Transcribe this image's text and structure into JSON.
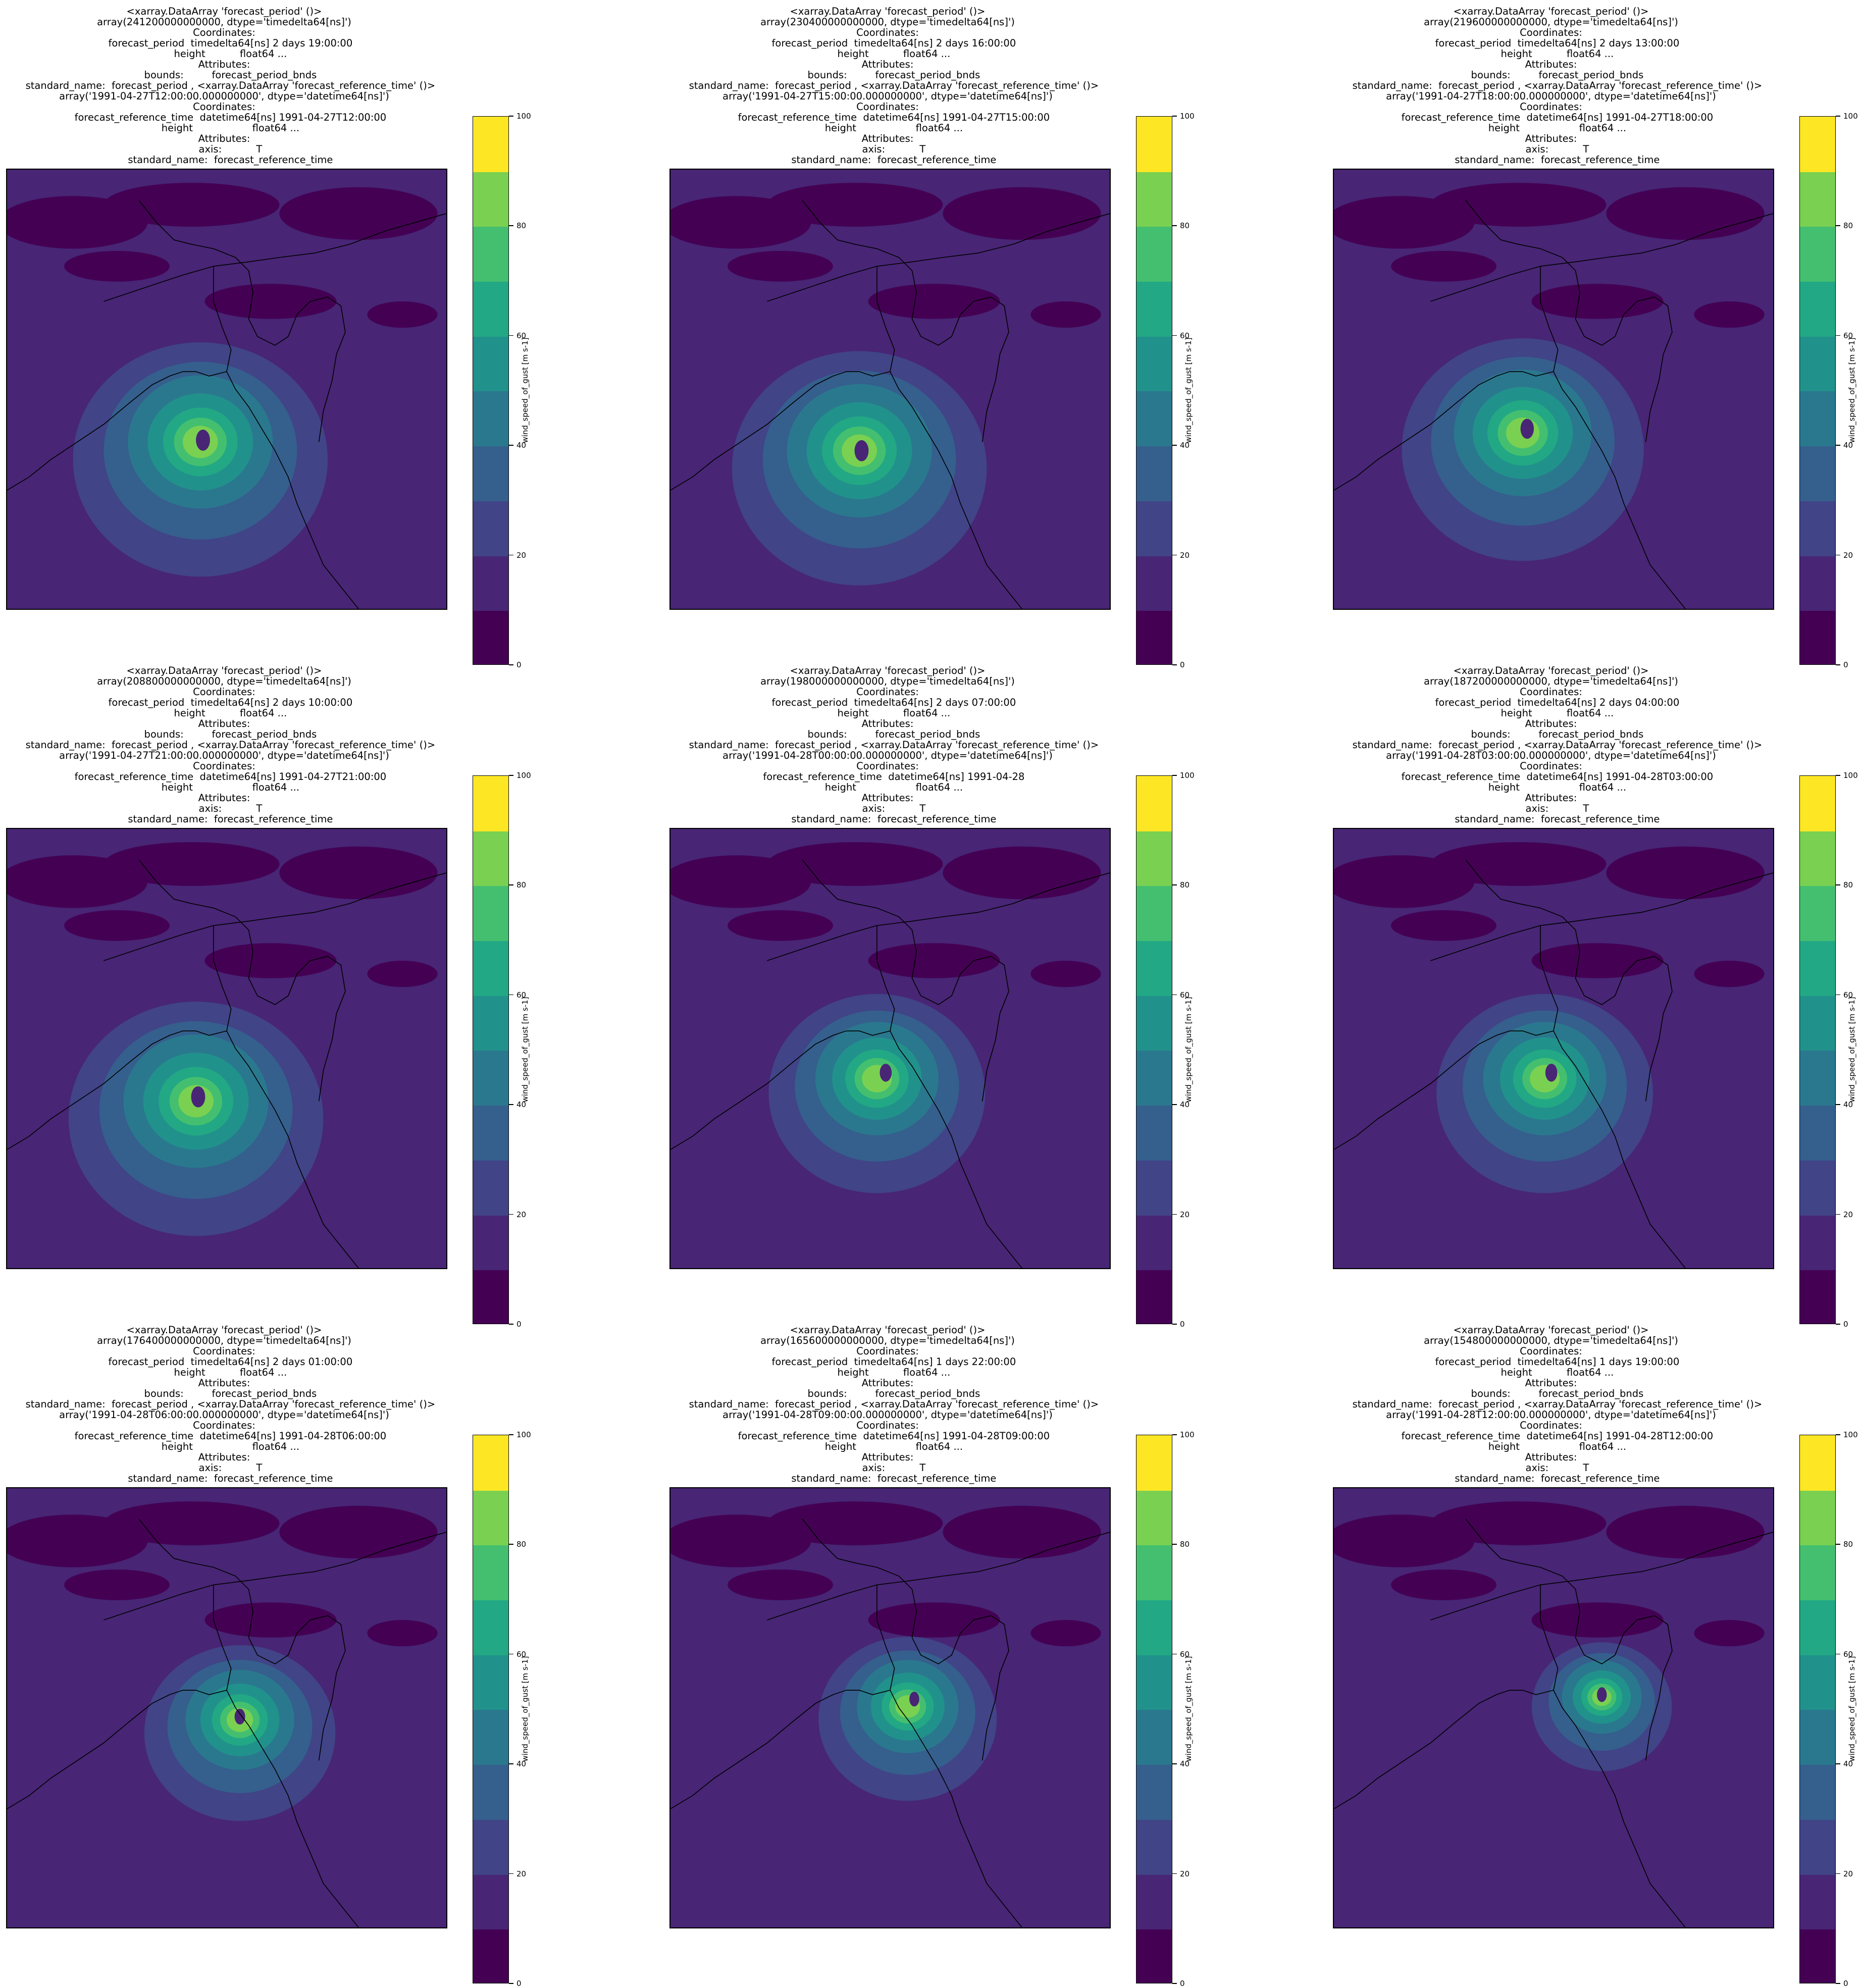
{
  "chart_data": {
    "type": "heatmap",
    "colormap_levels": [
      0,
      10,
      20,
      30,
      40,
      50,
      60,
      70,
      80,
      90,
      100
    ],
    "colormap_colors": [
      "#440154",
      "#482575",
      "#414487",
      "#355f8d",
      "#2a788e",
      "#21918c",
      "#22a884",
      "#44bf70",
      "#7ad151",
      "#bddf26",
      "#fde725"
    ],
    "colorbar_label": "wind_speed_of_gust [m s-1]",
    "colorbar_ticks": [
      "0",
      "20",
      "40",
      "60",
      "80",
      "100"
    ],
    "panels": [
      {
        "title_lines": [
          "<xarray.DataArray 'forecast_period' ()>",
          "array(241200000000000, dtype='timedelta64[ns]')",
          "Coordinates:",
          "    forecast_period  timedelta64[ns] 2 days 19:00:00",
          "    height           float64 ...",
          "Attributes:",
          "    bounds:         forecast_period_bnds",
          "    standard_name:  forecast_period , <xarray.DataArray 'forecast_reference_time' ()>",
          "array('1991-04-27T12:00:00.000000000', dtype='datetime64[ns]')",
          "Coordinates:",
          "    forecast_reference_time  datetime64[ns] 1991-04-27T12:00:00",
          "    height                   float64 ...",
          "Attributes:",
          "    axis:           T",
          "    standard_name:  forecast_reference_time"
        ],
        "storm_center": [
          0.44,
          0.61
        ],
        "storm_scale": 1.0,
        "eye_offset": [
          0.006,
          0.006
        ]
      },
      {
        "title_lines": [
          "<xarray.DataArray 'forecast_period' ()>",
          "array(230400000000000, dtype='timedelta64[ns]')",
          "Coordinates:",
          "    forecast_period  timedelta64[ns] 2 days 16:00:00",
          "    height           float64 ...",
          "Attributes:",
          "    bounds:         forecast_period_bnds",
          "    standard_name:  forecast_period , <xarray.DataArray 'forecast_reference_time' ()>",
          "array('1991-04-27T15:00:00.000000000', dtype='datetime64[ns]')",
          "Coordinates:",
          "    forecast_reference_time  datetime64[ns] 1991-04-27T15:00:00",
          "    height                   float64 ...",
          "Attributes:",
          "    axis:           T",
          "    standard_name:  forecast_reference_time"
        ],
        "storm_center": [
          0.43,
          0.63
        ],
        "storm_scale": 1.0,
        "eye_offset": [
          0.005,
          0.01
        ]
      },
      {
        "title_lines": [
          "<xarray.DataArray 'forecast_period' ()>",
          "array(219600000000000, dtype='timedelta64[ns]')",
          "Coordinates:",
          "    forecast_period  timedelta64[ns] 2 days 13:00:00",
          "    height           float64 ...",
          "Attributes:",
          "    bounds:         forecast_period_bnds",
          "    standard_name:  forecast_period , <xarray.DataArray 'forecast_reference_time' ()>",
          "array('1991-04-27T18:00:00.000000000', dtype='datetime64[ns]')",
          "Coordinates:",
          "    forecast_reference_time  datetime64[ns] 1991-04-27T18:00:00",
          "    height                   float64 ...",
          "Attributes:",
          "    axis:           T",
          "    standard_name:  forecast_reference_time"
        ],
        "storm_center": [
          0.43,
          0.59
        ],
        "storm_scale": 0.95,
        "eye_offset": [
          0.01,
          0.0
        ]
      },
      {
        "title_lines": [
          "<xarray.DataArray 'forecast_period' ()>",
          "array(208800000000000, dtype='timedelta64[ns]')",
          "Coordinates:",
          "    forecast_period  timedelta64[ns] 2 days 10:00:00",
          "    height           float64 ...",
          "Attributes:",
          "    bounds:         forecast_period_bnds",
          "    standard_name:  forecast_period , <xarray.DataArray 'forecast_reference_time' ()>",
          "array('1991-04-27T21:00:00.000000000', dtype='datetime64[ns]')",
          "Coordinates:",
          "    forecast_reference_time  datetime64[ns] 1991-04-27T21:00:00",
          "    height                   float64 ...",
          "Attributes:",
          "    axis:           T",
          "    standard_name:  forecast_reference_time"
        ],
        "storm_center": [
          0.43,
          0.61
        ],
        "storm_scale": 1.0,
        "eye_offset": [
          0.005,
          0.0
        ]
      },
      {
        "title_lines": [
          "<xarray.DataArray 'forecast_period' ()>",
          "array(198000000000000, dtype='timedelta64[ns]')",
          "Coordinates:",
          "    forecast_period  timedelta64[ns] 2 days 07:00:00",
          "    height           float64 ...",
          "Attributes:",
          "    bounds:         forecast_period_bnds",
          "    standard_name:  forecast_period , <xarray.DataArray 'forecast_reference_time' ()>",
          "array('1991-04-28T00:00:00.000000000', dtype='datetime64[ns]')",
          "Coordinates:",
          "    forecast_reference_time  datetime64[ns] 1991-04-28",
          "    height                   float64 ...",
          "Attributes:",
          "    axis:           T",
          "    standard_name:  forecast_reference_time"
        ],
        "storm_center": [
          0.47,
          0.56
        ],
        "storm_scale": 0.85,
        "eye_offset": [
          0.02,
          -0.005
        ]
      },
      {
        "title_lines": [
          "<xarray.DataArray 'forecast_period' ()>",
          "array(187200000000000, dtype='timedelta64[ns]')",
          "Coordinates:",
          "    forecast_period  timedelta64[ns] 2 days 04:00:00",
          "    height           float64 ...",
          "Attributes:",
          "    bounds:         forecast_period_bnds",
          "    standard_name:  forecast_period , <xarray.DataArray 'forecast_reference_time' ()>",
          "array('1991-04-28T03:00:00.000000000', dtype='datetime64[ns]')",
          "Coordinates:",
          "    forecast_reference_time  datetime64[ns] 1991-04-28T03:00:00",
          "    height                   float64 ...",
          "Attributes:",
          "    axis:           T",
          "    standard_name:  forecast_reference_time"
        ],
        "storm_center": [
          0.48,
          0.56
        ],
        "storm_scale": 0.85,
        "eye_offset": [
          0.015,
          -0.005
        ]
      },
      {
        "title_lines": [
          "<xarray.DataArray 'forecast_period' ()>",
          "array(176400000000000, dtype='timedelta64[ns]')",
          "Coordinates:",
          "    forecast_period  timedelta64[ns] 2 days 01:00:00",
          "    height           float64 ...",
          "Attributes:",
          "    bounds:         forecast_period_bnds",
          "    standard_name:  forecast_period , <xarray.DataArray 'forecast_reference_time' ()>",
          "array('1991-04-28T06:00:00.000000000', dtype='datetime64[ns]')",
          "Coordinates:",
          "    forecast_reference_time  datetime64[ns] 1991-04-28T06:00:00",
          "    height                   float64 ...",
          "Attributes:",
          "    axis:           T",
          "    standard_name:  forecast_reference_time"
        ],
        "storm_center": [
          0.53,
          0.52
        ],
        "storm_scale": 0.75,
        "eye_offset": [
          0.0,
          0.0
        ]
      },
      {
        "title_lines": [
          "<xarray.DataArray 'forecast_period' ()>",
          "array(165600000000000, dtype='timedelta64[ns]')",
          "Coordinates:",
          "    forecast_period  timedelta64[ns] 1 days 22:00:00",
          "    height           float64 ...",
          "Attributes:",
          "    bounds:         forecast_period_bnds",
          "    standard_name:  forecast_period , <xarray.DataArray 'forecast_reference_time' ()>",
          "array('1991-04-28T09:00:00.000000000', dtype='datetime64[ns]')",
          "Coordinates:",
          "    forecast_reference_time  datetime64[ns] 1991-04-28T09:00:00",
          "    height                   float64 ...",
          "Attributes:",
          "    axis:           T",
          "    standard_name:  forecast_reference_time"
        ],
        "storm_center": [
          0.54,
          0.49
        ],
        "storm_scale": 0.7,
        "eye_offset": [
          0.015,
          -0.01
        ]
      },
      {
        "title_lines": [
          "<xarray.DataArray 'forecast_period' ()>",
          "array(154800000000000, dtype='timedelta64[ns]')",
          "Coordinates:",
          "    forecast_period  timedelta64[ns] 1 days 19:00:00",
          "    height           float64 ...",
          "Attributes:",
          "    bounds:         forecast_period_bnds",
          "    standard_name:  forecast_period , <xarray.DataArray 'forecast_reference_time' ()>",
          "array('1991-04-28T12:00:00.000000000', dtype='datetime64[ns]')",
          "Coordinates:",
          "    forecast_reference_time  datetime64[ns] 1991-04-28T12:00:00",
          "    height                   float64 ...",
          "Attributes:",
          "    axis:           T",
          "    standard_name:  forecast_reference_time"
        ],
        "storm_center": [
          0.61,
          0.47
        ],
        "storm_scale": 0.55,
        "eye_offset": [
          0.0,
          0.0
        ]
      }
    ]
  }
}
